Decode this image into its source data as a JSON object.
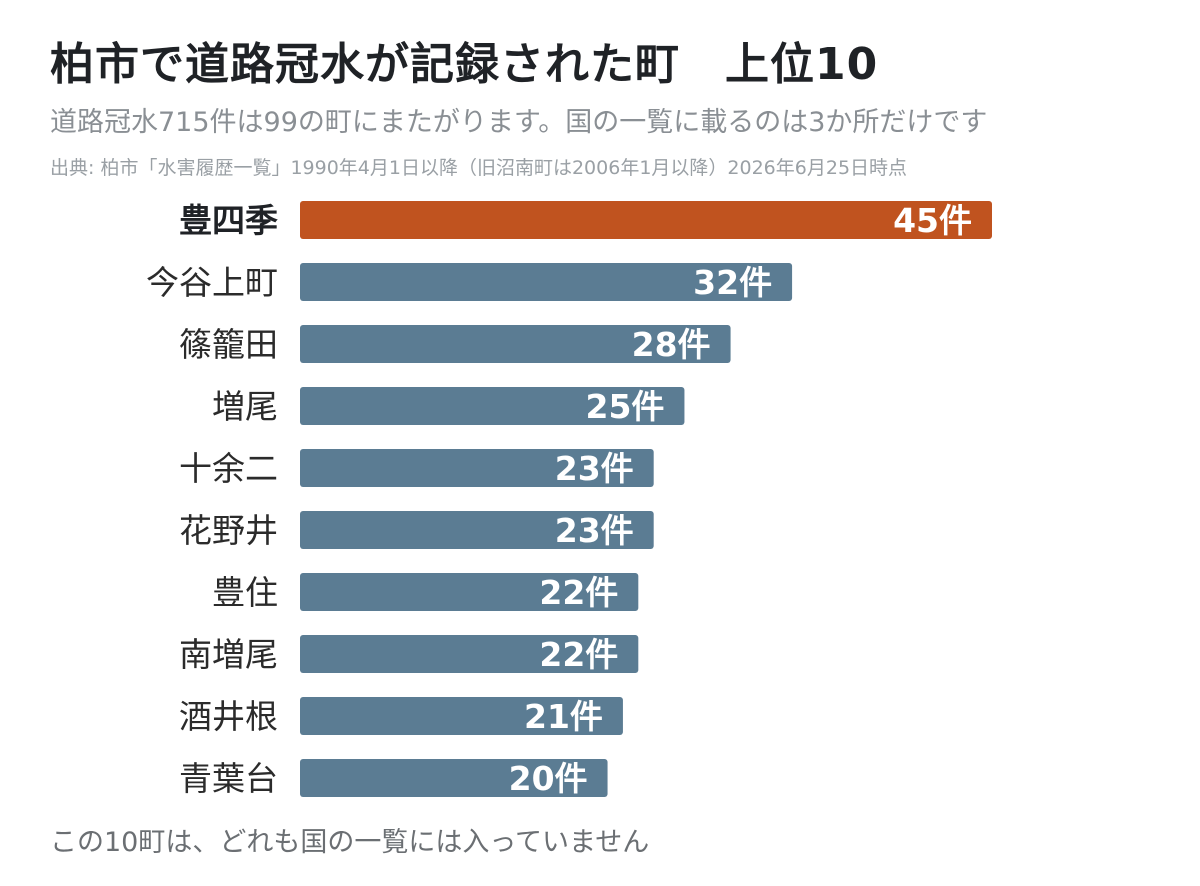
{
  "title": "柏市で道路冠水が記録された町　上位10",
  "subtitle": "道路冠水715件は99の町にまたがります。国の一覧に載るのは3か所だけです",
  "source": "出典: 柏市「水害履歴一覧」1990年4月1日以降（旧沼南町は2006年1月以降）2026年6月25日時点",
  "footer": "この10町は、どれも国の一覧には入っていません",
  "colors": {
    "highlight": "#c0531f",
    "bar": "#5b7c93"
  },
  "chart_data": {
    "type": "bar",
    "orientation": "horizontal",
    "categories": [
      "豊四季",
      "今谷上町",
      "篠籠田",
      "増尾",
      "十余二",
      "花野井",
      "豊住",
      "南増尾",
      "酒井根",
      "青葉台"
    ],
    "values": [
      45,
      32,
      28,
      25,
      23,
      23,
      22,
      22,
      21,
      20
    ],
    "value_labels": [
      "45件",
      "32件",
      "28件",
      "25件",
      "23件",
      "23件",
      "22件",
      "22件",
      "21件",
      "20件"
    ],
    "highlight": "豊四季",
    "xlim": [
      0,
      45
    ],
    "grid": false,
    "legend": false
  }
}
